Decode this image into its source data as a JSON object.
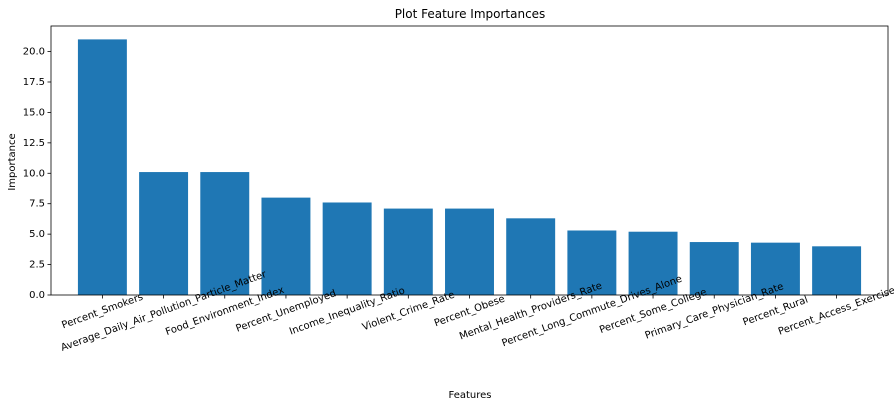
{
  "chart_data": {
    "type": "bar",
    "title": "Plot Feature Importances",
    "xlabel": "Features",
    "ylabel": "Importance",
    "categories": [
      "Percent_Smokers",
      "Average_Daily_Air_Pollution_Particle_Matter",
      "Food_Environment_Index",
      "Percent_Unemployed",
      "Income_Inequality_Ratio",
      "Violent_Crime_Rate",
      "Percent_Obese",
      "Mental_Health_Providers_Rate",
      "Percent_Long_Commute_Drives_Alone",
      "Percent_Some_College",
      "Primary_Care_Physician_Rate",
      "Percent_Rural",
      "Percent_Access_Exercise"
    ],
    "values": [
      21.0,
      10.1,
      10.1,
      8.0,
      7.6,
      7.1,
      7.1,
      6.3,
      5.3,
      5.2,
      4.35,
      4.3,
      4.0
    ],
    "ylim": [
      0,
      22.1
    ],
    "yticks": [
      0.0,
      2.5,
      5.0,
      7.5,
      10.0,
      12.5,
      15.0,
      17.5,
      20.0
    ],
    "ytick_labels": [
      "0.0",
      "2.5",
      "5.0",
      "7.5",
      "10.0",
      "12.5",
      "15.0",
      "17.5",
      "20.0"
    ],
    "xtick_rotation": 20,
    "bar_color": "#1f77b4",
    "grid": false,
    "legend": "none"
  }
}
